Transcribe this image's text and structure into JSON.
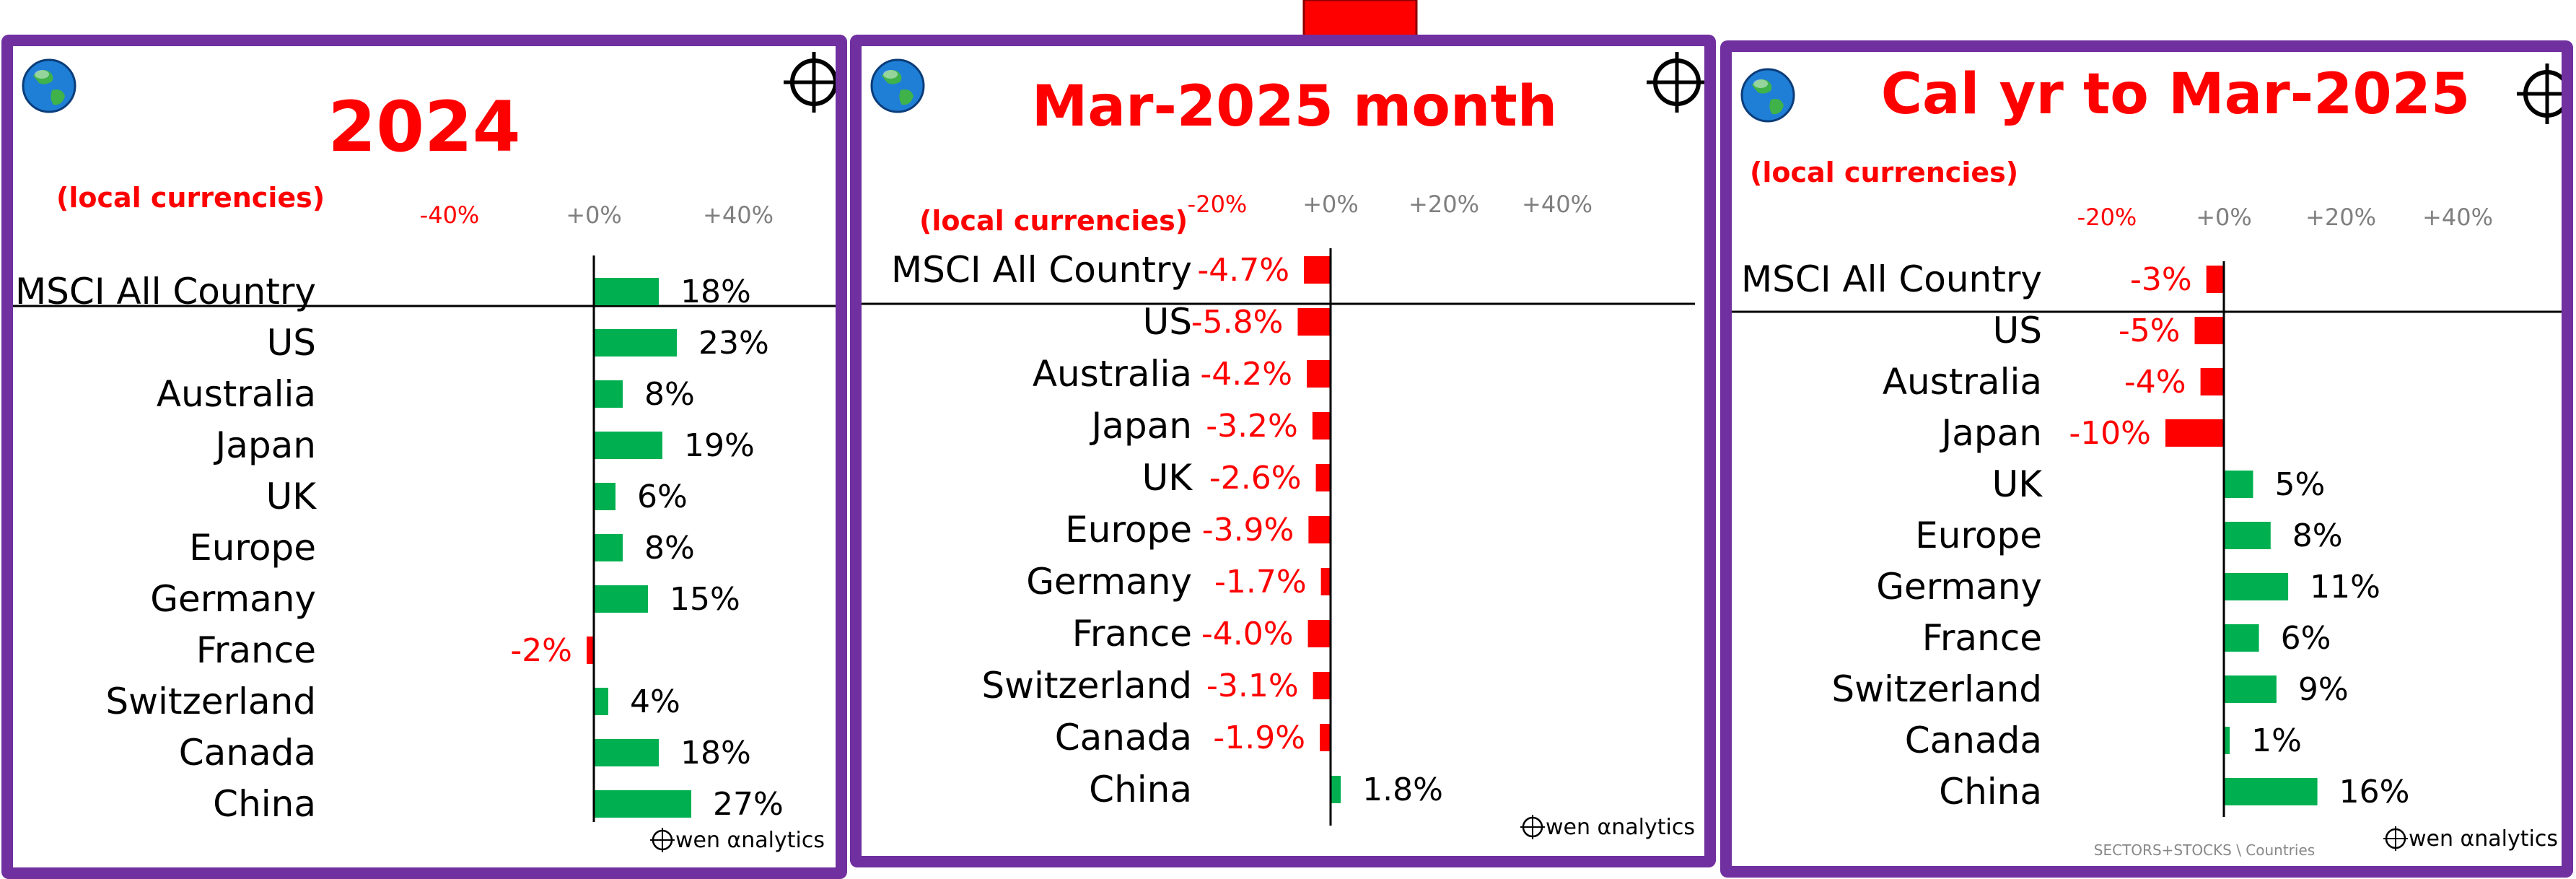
{
  "colors": {
    "positive": "#00b050",
    "negative": "#ff0000",
    "frame": "#7030a0",
    "tick_negative": "#ff0000",
    "tick_positive": "#7f7f7f"
  },
  "icons": {
    "globe": "globe-icon",
    "crosshair": "crosshair-icon",
    "arrow": "down-arrow-icon"
  },
  "footer": "SECTORS+STOCKS \\ Countries",
  "chart_data": [
    {
      "type": "bar",
      "orientation": "horizontal",
      "title": "2024",
      "subtitle": "(local currencies)",
      "brand": "wen αnalytics",
      "xlim": [
        -40,
        40
      ],
      "xticks": [
        -40,
        0,
        40
      ],
      "xtick_labels": [
        "-40%",
        "+0%",
        "+40%"
      ],
      "categories": [
        "MSCI All Country",
        "US",
        "Australia",
        "Japan",
        "UK",
        "Europe",
        "Germany",
        "France",
        "Switzerland",
        "Canada",
        "China"
      ],
      "values": [
        18,
        23,
        8,
        19,
        6,
        8,
        15,
        -2,
        4,
        18,
        27
      ],
      "value_labels": [
        "18%",
        "23%",
        "8%",
        "19%",
        "6%",
        "8%",
        "15%",
        "-2%",
        "4%",
        "18%",
        "27%"
      ]
    },
    {
      "type": "bar",
      "orientation": "horizontal",
      "title": "Mar-2025 month",
      "subtitle": "(local currencies)",
      "brand": "wen αnalytics",
      "xlim": [
        -20,
        40
      ],
      "xticks": [
        -20,
        0,
        20,
        40
      ],
      "xtick_labels": [
        "-20%",
        "+0%",
        "+20%",
        "+40%"
      ],
      "categories": [
        "MSCI All Country",
        "US",
        "Australia",
        "Japan",
        "UK",
        "Europe",
        "Germany",
        "France",
        "Switzerland",
        "Canada",
        "China"
      ],
      "values": [
        -4.7,
        -5.8,
        -4.2,
        -3.2,
        -2.6,
        -3.9,
        -1.7,
        -4.0,
        -3.1,
        -1.9,
        1.8
      ],
      "value_labels": [
        "-4.7%",
        "-5.8%",
        "-4.2%",
        "-3.2%",
        "-2.6%",
        "-3.9%",
        "-1.7%",
        "-4.0%",
        "-3.1%",
        "-1.9%",
        "1.8%"
      ]
    },
    {
      "type": "bar",
      "orientation": "horizontal",
      "title": "Cal yr to Mar-2025",
      "subtitle": "(local currencies)",
      "brand": "wen αnalytics",
      "xlim": [
        -20,
        40
      ],
      "xticks": [
        -20,
        0,
        20,
        40
      ],
      "xtick_labels": [
        "-20%",
        "+0%",
        "+20%",
        "+40%"
      ],
      "categories": [
        "MSCI All Country",
        "US",
        "Australia",
        "Japan",
        "UK",
        "Europe",
        "Germany",
        "France",
        "Switzerland",
        "Canada",
        "China"
      ],
      "values": [
        -3,
        -5,
        -4,
        -10,
        5,
        8,
        11,
        6,
        9,
        1,
        16
      ],
      "value_labels": [
        "-3%",
        "-5%",
        "-4%",
        "-10%",
        "5%",
        "8%",
        "11%",
        "6%",
        "9%",
        "1%",
        "16%"
      ]
    }
  ]
}
